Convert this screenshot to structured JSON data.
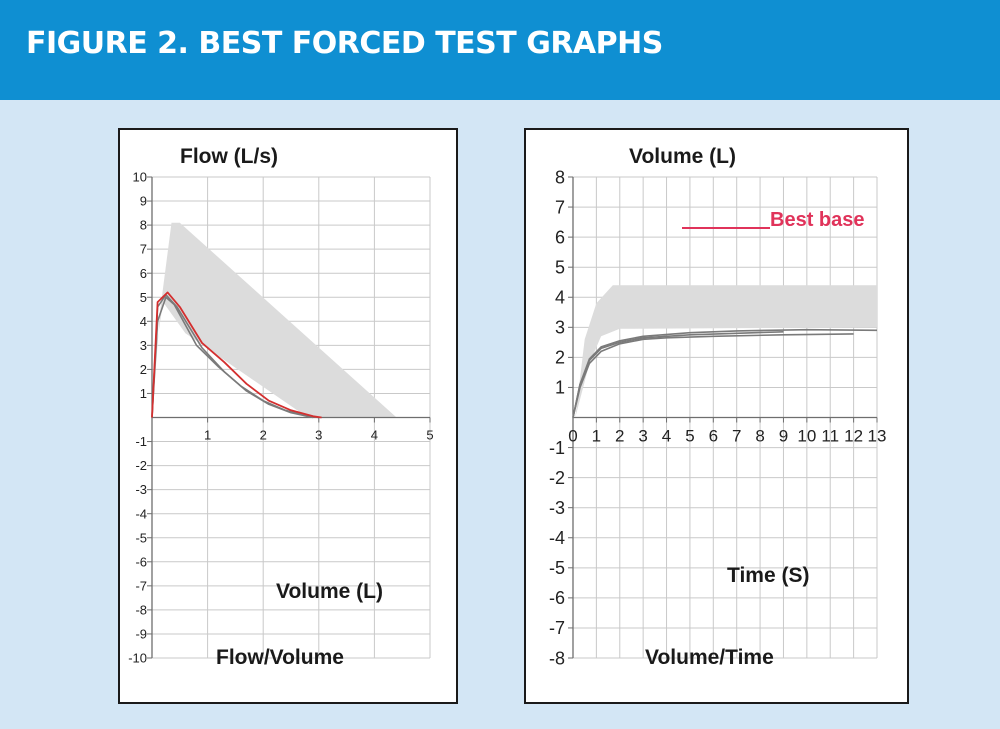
{
  "header": {
    "title": "FIGURE 2. BEST FORCED TEST GRAPHS"
  },
  "colors": {
    "header_bg": "#0f8fd2",
    "page_bg": "#d3e6f5",
    "envelope": "#dcdcdc",
    "trial_line": "#7a7a7a",
    "best_line": "#d42f2f",
    "legend_red": "#e0335a"
  },
  "chart_data": [
    {
      "type": "line",
      "title": "Flow (L/s)",
      "subtitle": "Flow/Volume",
      "xlabel": "Volume (L)",
      "ylabel": "Flow (L/s)",
      "xlim": [
        0,
        5
      ],
      "ylim": [
        -10,
        10
      ],
      "x_ticks": [
        "1",
        "2",
        "3",
        "4",
        "5"
      ],
      "y_ticks": [
        "10",
        "9",
        "8",
        "7",
        "6",
        "5",
        "4",
        "3",
        "2",
        "1",
        "-1",
        "-2",
        "-3",
        "-4",
        "-5",
        "-6",
        "-7",
        "-8",
        "-9",
        "-10"
      ],
      "grid": true,
      "envelope": [
        [
          0,
          0
        ],
        [
          0.15,
          4.5
        ],
        [
          0.35,
          8.1
        ],
        [
          0.5,
          8.1
        ],
        [
          4.4,
          0
        ],
        [
          2.8,
          0
        ],
        [
          0.6,
          3.5
        ],
        [
          0.2,
          4.8
        ],
        [
          0.05,
          2.5
        ]
      ],
      "series": [
        {
          "values": [
            [
              0,
              0
            ],
            [
              0.1,
              4.0
            ],
            [
              0.25,
              5.0
            ],
            [
              0.4,
              4.7
            ],
            [
              0.8,
              3.0
            ],
            [
              1.2,
              2.1
            ],
            [
              1.6,
              1.3
            ],
            [
              2.0,
              0.7
            ],
            [
              2.4,
              0.3
            ],
            [
              2.8,
              0.05
            ],
            [
              3.0,
              0
            ]
          ]
        },
        {
          "values": [
            [
              0,
              0
            ],
            [
              0.1,
              4.6
            ],
            [
              0.25,
              5.1
            ],
            [
              0.45,
              4.6
            ],
            [
              0.9,
              2.9
            ],
            [
              1.3,
              1.9
            ],
            [
              1.7,
              1.1
            ],
            [
              2.1,
              0.55
            ],
            [
              2.5,
              0.2
            ],
            [
              2.9,
              0
            ]
          ]
        },
        {
          "values": [
            [
              0,
              0
            ],
            [
              0.1,
              4.8
            ],
            [
              0.28,
              5.2
            ],
            [
              0.5,
              4.6
            ],
            [
              0.9,
              3.1
            ],
            [
              1.3,
              2.3
            ],
            [
              1.7,
              1.4
            ],
            [
              2.1,
              0.7
            ],
            [
              2.5,
              0.3
            ],
            [
              2.9,
              0.05
            ],
            [
              3.05,
              0
            ]
          ]
        }
      ]
    },
    {
      "type": "line",
      "title": "Volume (L)",
      "subtitle": "Volume/Time",
      "xlabel": "Time (S)",
      "ylabel": "Volume (L)",
      "xlim": [
        0,
        13
      ],
      "ylim": [
        -8,
        8
      ],
      "x_ticks": [
        "0",
        "1",
        "2",
        "3",
        "4",
        "5",
        "6",
        "7",
        "8",
        "9",
        "10",
        "11",
        "12",
        "13"
      ],
      "y_ticks": [
        "8",
        "7",
        "6",
        "5",
        "4",
        "3",
        "2",
        "1",
        "-1",
        "-2",
        "-3",
        "-4",
        "-5",
        "-6",
        "-7",
        "-8"
      ],
      "grid": true,
      "legend": {
        "label": "Best base",
        "position": "top-right"
      },
      "envelope": [
        [
          0.1,
          0
        ],
        [
          0.5,
          2.6
        ],
        [
          1,
          3.8
        ],
        [
          1.7,
          4.4
        ],
        [
          13,
          4.4
        ],
        [
          13,
          3.0
        ],
        [
          2,
          2.95
        ],
        [
          1.2,
          2.7
        ],
        [
          0.7,
          1.8
        ],
        [
          0.3,
          0.6
        ]
      ],
      "series": [
        {
          "values": [
            [
              0,
              0
            ],
            [
              0.3,
              1.0
            ],
            [
              0.7,
              1.8
            ],
            [
              1.2,
              2.2
            ],
            [
              2,
              2.45
            ],
            [
              3,
              2.6
            ],
            [
              4,
              2.65
            ],
            [
              6,
              2.7
            ],
            [
              9,
              2.75
            ],
            [
              12,
              2.78
            ]
          ]
        },
        {
          "values": [
            [
              0,
              0
            ],
            [
              0.3,
              1.1
            ],
            [
              0.7,
              1.9
            ],
            [
              1.2,
              2.3
            ],
            [
              2,
              2.5
            ],
            [
              3,
              2.65
            ],
            [
              5,
              2.75
            ],
            [
              7,
              2.8
            ],
            [
              9,
              2.85
            ]
          ]
        },
        {
          "values": [
            [
              0,
              0
            ],
            [
              0.3,
              1.1
            ],
            [
              0.7,
              1.95
            ],
            [
              1.2,
              2.35
            ],
            [
              2,
              2.55
            ],
            [
              3,
              2.7
            ],
            [
              5,
              2.82
            ],
            [
              7,
              2.88
            ],
            [
              10,
              2.92
            ],
            [
              13,
              2.9
            ]
          ]
        }
      ]
    }
  ]
}
